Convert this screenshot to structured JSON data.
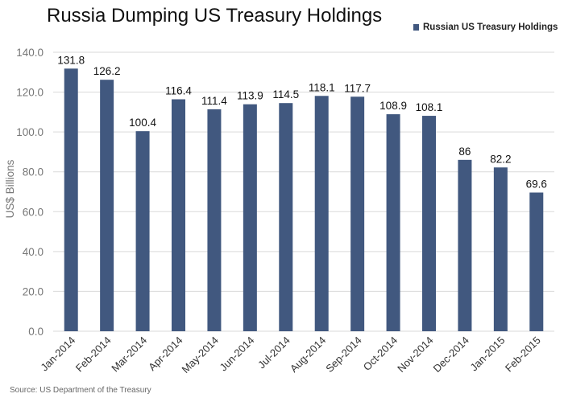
{
  "chart_data": {
    "type": "bar",
    "title": "Russia Dumping US Treasury Holdings",
    "ylabel": "US$ Billions",
    "xlabel": "",
    "ylim": [
      0,
      140
    ],
    "yticks": [
      "0.0",
      "20.0",
      "40.0",
      "60.0",
      "80.0",
      "100.0",
      "120.0",
      "140.0"
    ],
    "categories": [
      "Jan-2014",
      "Feb-2014",
      "Mar-2014",
      "Apr-2014",
      "May-2014",
      "Jun-2014",
      "Jul-2014",
      "Aug-2014",
      "Sep-2014",
      "Oct-2014",
      "Nov-2014",
      "Dec-2014",
      "Jan-2015",
      "Feb-2015"
    ],
    "series": [
      {
        "name": "Russian US Treasury Holdings",
        "values": [
          131.8,
          126.2,
          100.4,
          116.4,
          111.4,
          113.9,
          114.5,
          118.1,
          117.7,
          108.9,
          108.1,
          86,
          82.2,
          69.6
        ],
        "labels": [
          "131.8",
          "126.2",
          "100.4",
          "116.4",
          "111.4",
          "113.9",
          "114.5",
          "118.1",
          "117.7",
          "108.9",
          "108.1",
          "86",
          "82.2",
          "69.6"
        ]
      }
    ],
    "legend": "top-right",
    "grid": true,
    "colors": {
      "bar": "#41587f",
      "grid": "#d9d9d9"
    },
    "source": "Source: US Department of the Treasury"
  }
}
